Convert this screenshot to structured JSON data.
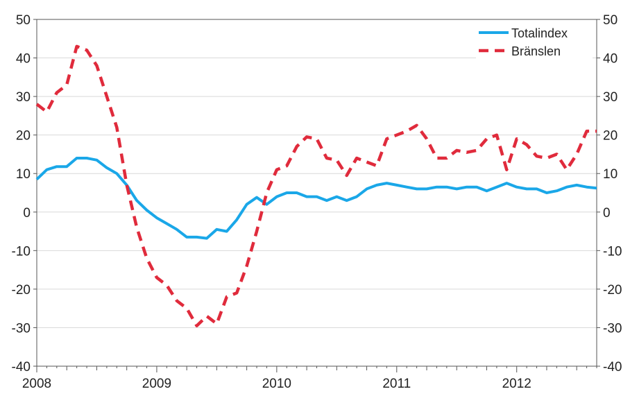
{
  "chart_data": {
    "type": "line",
    "title": "",
    "xlabel": "",
    "ylabel": "",
    "ylim": [
      -40,
      50
    ],
    "y_ticks": [
      "50",
      "40",
      "30",
      "20",
      "10",
      "0",
      "-10",
      "-20",
      "-30",
      "-40"
    ],
    "right_axis_mirrors_left": true,
    "x_range": [
      "2008-01",
      "2012-09"
    ],
    "x_tick_labels": [
      "2008",
      "2009",
      "2010",
      "2011",
      "2012"
    ],
    "grid": "horizontal",
    "legend_position": "top-right",
    "months": [
      "2008-01",
      "2008-02",
      "2008-03",
      "2008-04",
      "2008-05",
      "2008-06",
      "2008-07",
      "2008-08",
      "2008-09",
      "2008-10",
      "2008-11",
      "2008-12",
      "2009-01",
      "2009-02",
      "2009-03",
      "2009-04",
      "2009-05",
      "2009-06",
      "2009-07",
      "2009-08",
      "2009-09",
      "2009-10",
      "2009-11",
      "2009-12",
      "2010-01",
      "2010-02",
      "2010-03",
      "2010-04",
      "2010-05",
      "2010-06",
      "2010-07",
      "2010-08",
      "2010-09",
      "2010-10",
      "2010-11",
      "2010-12",
      "2011-01",
      "2011-02",
      "2011-03",
      "2011-04",
      "2011-05",
      "2011-06",
      "2011-07",
      "2011-08",
      "2011-09",
      "2011-10",
      "2011-11",
      "2011-12",
      "2012-01",
      "2012-02",
      "2012-03",
      "2012-04",
      "2012-05",
      "2012-06",
      "2012-07",
      "2012-08",
      "2012-09"
    ],
    "series": [
      {
        "name": "Totalindex",
        "color": "#1aa7e8",
        "style": "solid",
        "values": [
          8.5,
          11,
          11.8,
          11.8,
          14,
          14,
          13.5,
          11.5,
          10,
          7,
          3,
          0.5,
          -1.5,
          -3,
          -4.5,
          -6.5,
          -6.5,
          -6.8,
          -4.5,
          -5,
          -2,
          2,
          3.8,
          2,
          4,
          5,
          5,
          4,
          4,
          3,
          4,
          3,
          4,
          6,
          7,
          7.5,
          7,
          6.5,
          6,
          6,
          6.5,
          6.5,
          6,
          6.5,
          6.5,
          5.5,
          6.5,
          7.5,
          6.5,
          6,
          6,
          5,
          5.5,
          6.5,
          7,
          6.5,
          6.2
        ]
      },
      {
        "name": "Bränslen",
        "color": "#e02b3c",
        "style": "dashed",
        "values": [
          28,
          26,
          31,
          33,
          43,
          42,
          38,
          30,
          22,
          7,
          -4,
          -12,
          -17,
          -19,
          -23,
          -25,
          -29.5,
          -27,
          -29,
          -22,
          -21,
          -14,
          -5,
          5,
          11,
          12,
          17,
          19.5,
          19,
          14,
          13.5,
          9.5,
          14,
          13,
          12,
          19,
          20,
          21,
          22.5,
          19,
          14,
          14,
          16,
          15.5,
          16,
          19,
          20,
          11,
          19,
          17.5,
          14.5,
          14,
          15,
          11,
          15,
          21,
          21
        ]
      }
    ]
  }
}
